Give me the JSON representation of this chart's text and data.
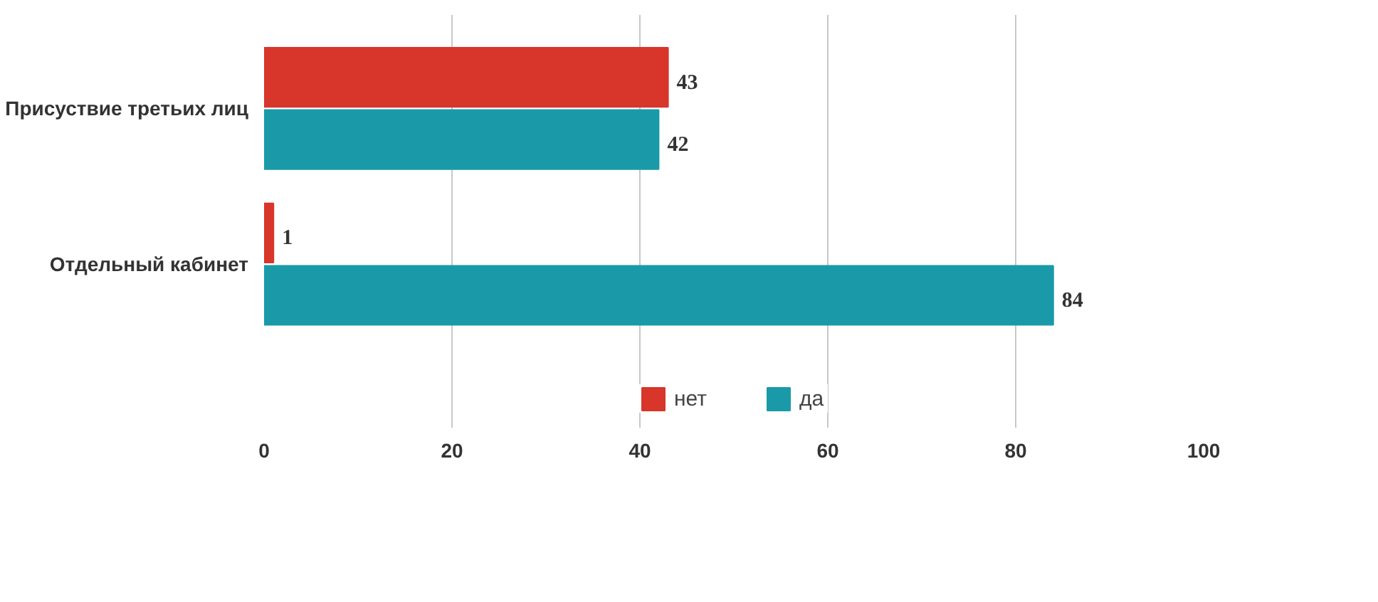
{
  "chart_data": {
    "type": "bar",
    "orientation": "horizontal",
    "categories": [
      "Присуствие третьих лиц",
      "Отдельный кабинет"
    ],
    "series": [
      {
        "name": "нет",
        "color": "#d8352b",
        "values": [
          43,
          1
        ]
      },
      {
        "name": "да",
        "color": "#1a9aa8",
        "values": [
          42,
          84
        ]
      }
    ],
    "xlim": [
      0,
      100
    ],
    "xticks": [
      0,
      20,
      40,
      60,
      80,
      100
    ],
    "grid": "x",
    "legend": "bottom",
    "data_labels": true
  }
}
